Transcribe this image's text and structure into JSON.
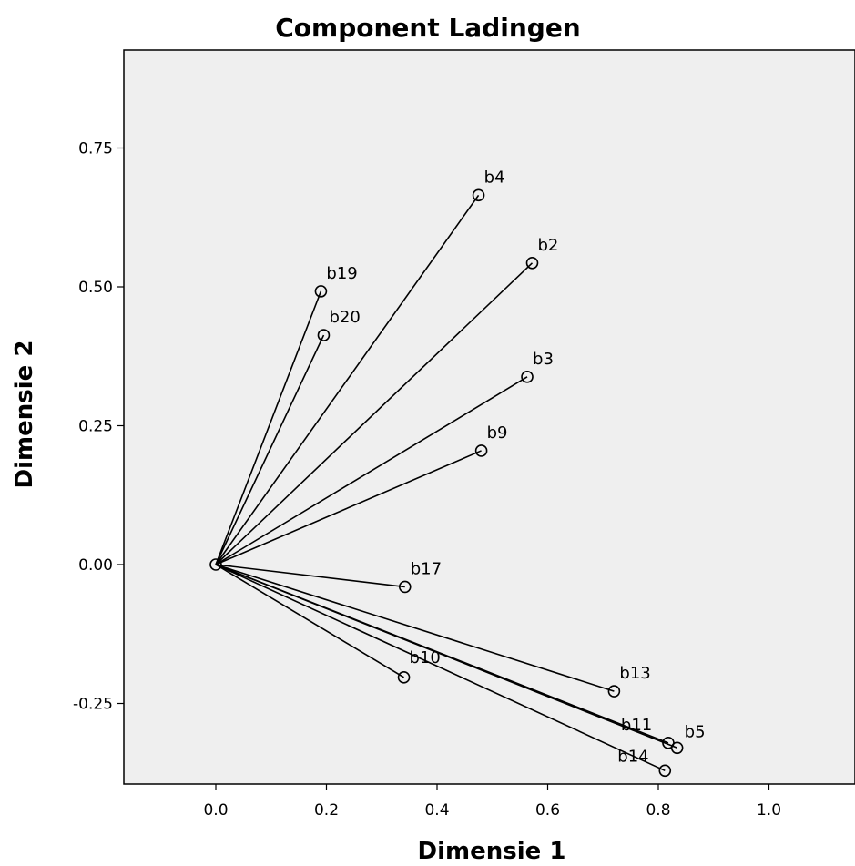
{
  "chart_data": {
    "type": "scatter",
    "title": "Component Ladingen",
    "xlabel": "Dimensie 1",
    "ylabel": "Dimensie 2",
    "xlim": [
      -0.17,
      1.15
    ],
    "ylim": [
      -0.4,
      0.9
    ],
    "xticks": [
      0.0,
      0.2,
      0.4,
      0.6,
      0.8,
      1.0
    ],
    "xtick_labels": [
      "0.0",
      "0.2",
      "0.4",
      "0.6",
      "0.8",
      "1.0"
    ],
    "yticks": [
      0.75,
      0.5,
      0.25,
      0.0,
      -0.25
    ],
    "ytick_labels": [
      "0.75",
      "0.50",
      "0.25",
      "0.00",
      "-0.25"
    ],
    "grid": false,
    "origin": [
      0.0,
      0.0
    ],
    "points": [
      {
        "label": "b4",
        "x": 0.475,
        "y": 0.665
      },
      {
        "label": "b2",
        "x": 0.572,
        "y": 0.543
      },
      {
        "label": "b19",
        "x": 0.19,
        "y": 0.492
      },
      {
        "label": "b20",
        "x": 0.195,
        "y": 0.413
      },
      {
        "label": "b3",
        "x": 0.563,
        "y": 0.338
      },
      {
        "label": "b9",
        "x": 0.48,
        "y": 0.205
      },
      {
        "label": "b17",
        "x": 0.342,
        "y": -0.04
      },
      {
        "label": "b10",
        "x": 0.34,
        "y": -0.203
      },
      {
        "label": "b13",
        "x": 0.72,
        "y": -0.228
      },
      {
        "label": "b11",
        "x": 0.818,
        "y": -0.321
      },
      {
        "label": "b5",
        "x": 0.834,
        "y": -0.33
      },
      {
        "label": "b14",
        "x": 0.812,
        "y": -0.371
      }
    ]
  }
}
